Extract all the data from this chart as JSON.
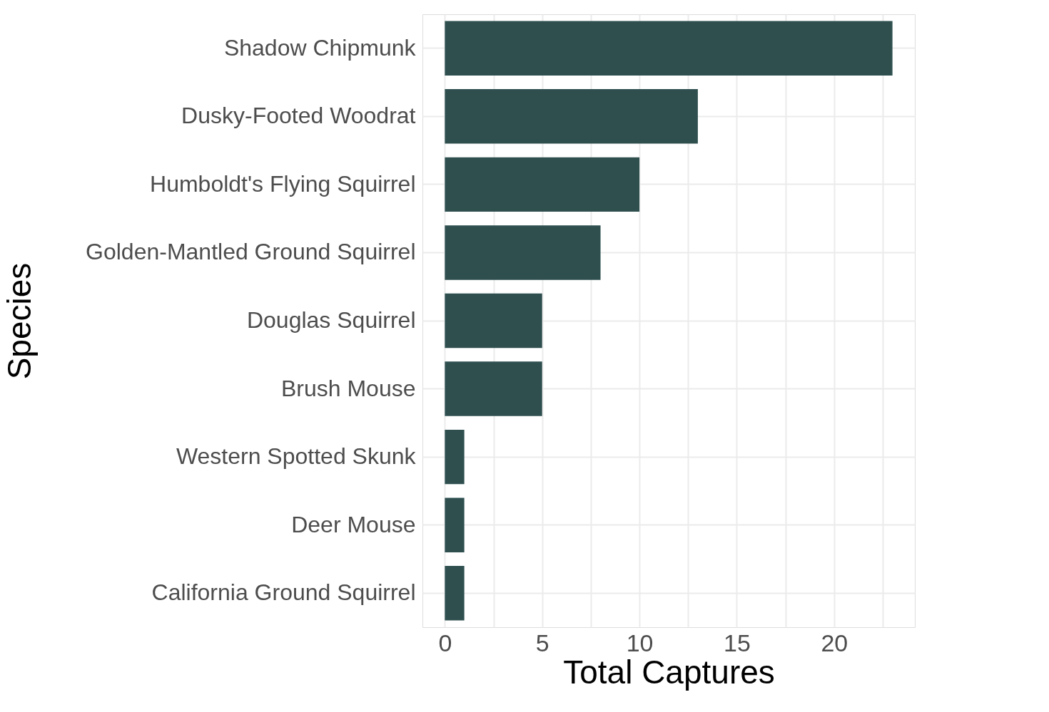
{
  "chart_data": {
    "type": "bar",
    "orientation": "horizontal",
    "xlabel": "Total Captures",
    "ylabel": "Species",
    "categories": [
      "Shadow Chipmunk",
      "Dusky-Footed Woodrat",
      "Humboldt's Flying Squirrel",
      "Golden-Mantled Ground Squirrel",
      "Douglas Squirrel",
      "Brush Mouse",
      "Western Spotted Skunk",
      "Deer Mouse",
      "California Ground Squirrel"
    ],
    "values": [
      23,
      13,
      10,
      8,
      5,
      5,
      1,
      1,
      1
    ],
    "color": "#2f4f4f",
    "xlim": [
      -1.15,
      24.15
    ],
    "xticks": [
      0,
      {
        "value": 2.5,
        "label": null
      },
      5,
      {
        "value": 7.5,
        "label": null
      },
      10,
      {
        "value": 12.5,
        "label": null
      },
      15,
      {
        "value": 17.5,
        "label": null
      },
      20,
      {
        "value": 22.5,
        "label": null
      }
    ],
    "grid": true
  }
}
